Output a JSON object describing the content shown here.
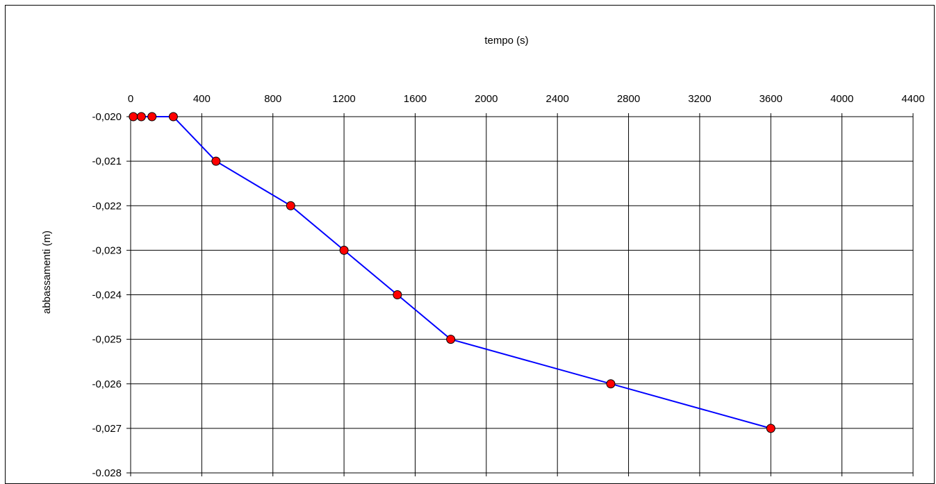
{
  "chart_data": {
    "type": "line",
    "title": "",
    "xlabel": "tempo (s)",
    "ylabel": "abbassamenti (m)",
    "x_axis_position": "top",
    "xlim": [
      0,
      4400
    ],
    "ylim": [
      -0.028,
      -0.02
    ],
    "x_ticks": [
      0,
      400,
      800,
      1200,
      1600,
      2000,
      2400,
      2800,
      3200,
      3600,
      4000,
      4400
    ],
    "x_tick_labels": [
      "0",
      "400",
      "800",
      "1200",
      "1600",
      "2000",
      "2400",
      "2800",
      "3200",
      "3600",
      "4000",
      "4400"
    ],
    "y_ticks": [
      -0.02,
      -0.021,
      -0.022,
      -0.023,
      -0.024,
      -0.025,
      -0.026,
      -0.027,
      -0.028
    ],
    "y_tick_labels": [
      "-0,020",
      "-0,021",
      "-0,022",
      "-0,023",
      "-0,024",
      "-0,025",
      "-0,026",
      "-0,027",
      "-0,028"
    ],
    "grid": true,
    "legend": "none",
    "series": [
      {
        "x": [
          15,
          60,
          120,
          240,
          480,
          900,
          1200,
          1500,
          1800,
          2700,
          3600
        ],
        "y": [
          -0.02,
          -0.02,
          -0.02,
          -0.02,
          -0.021,
          -0.022,
          -0.023,
          -0.024,
          -0.025,
          -0.026,
          -0.027
        ],
        "line_color": "#0000ff",
        "marker_color": "#ff0000",
        "marker_edge": "#000000"
      }
    ]
  }
}
